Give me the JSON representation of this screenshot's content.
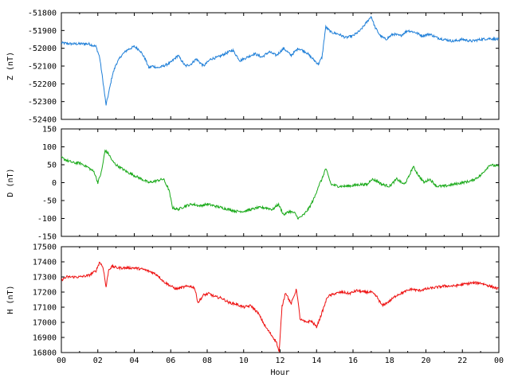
{
  "chart_data": [
    {
      "type": "line",
      "ylabel": "Z (nT)",
      "ylim": [
        -52400,
        -51800
      ],
      "yticks": [
        -52400,
        -52300,
        -52200,
        -52100,
        -52000,
        -51900,
        -51800
      ],
      "xlim": [
        0,
        24
      ],
      "color": "#1f7fd8",
      "series": [
        {
          "x": [
            0,
            0.5,
            1,
            1.5,
            1.9,
            2.1,
            2.3,
            2.45,
            2.6,
            2.8,
            3.0,
            3.3,
            3.6,
            4.0,
            4.3,
            4.6,
            4.8,
            5.0,
            5.3,
            5.6,
            6.0,
            6.4,
            6.8,
            7.1,
            7.4,
            7.8,
            8.2,
            8.6,
            9.0,
            9.4,
            9.8,
            10.2,
            10.6,
            11.0,
            11.4,
            11.8,
            12.2,
            12.6,
            13.0,
            13.4,
            13.8,
            14.1,
            14.3,
            14.5,
            14.8,
            15.2,
            15.6,
            16.0,
            16.4,
            16.7,
            17.0,
            17.2,
            17.5,
            17.8,
            18.2,
            18.6,
            19.0,
            19.4,
            19.8,
            20.2,
            20.6,
            21.0,
            21.5,
            22.0,
            22.5,
            23.0,
            23.5,
            24.0
          ],
          "values": [
            -51970,
            -51975,
            -51975,
            -51975,
            -51990,
            -52050,
            -52200,
            -52320,
            -52250,
            -52150,
            -52090,
            -52040,
            -52010,
            -51990,
            -52010,
            -52060,
            -52110,
            -52100,
            -52110,
            -52100,
            -52080,
            -52040,
            -52100,
            -52090,
            -52060,
            -52100,
            -52060,
            -52050,
            -52030,
            -52010,
            -52070,
            -52050,
            -52030,
            -52050,
            -52020,
            -52040,
            -52000,
            -52040,
            -52000,
            -52020,
            -52060,
            -52090,
            -52050,
            -51880,
            -51910,
            -51920,
            -51940,
            -51930,
            -51900,
            -51860,
            -51820,
            -51880,
            -51930,
            -51950,
            -51920,
            -51930,
            -51900,
            -51910,
            -51930,
            -51920,
            -51940,
            -51950,
            -51960,
            -51950,
            -51960,
            -51950,
            -51945,
            -51950
          ]
        }
      ]
    },
    {
      "type": "line",
      "ylabel": "D (nT)",
      "ylim": [
        -150,
        150
      ],
      "yticks": [
        -150,
        -100,
        -50,
        0,
        50,
        100,
        150
      ],
      "xlim": [
        0,
        24
      ],
      "color": "#1aaa1a",
      "series": [
        {
          "x": [
            0,
            0.3,
            0.7,
            1.0,
            1.4,
            1.8,
            2.0,
            2.2,
            2.4,
            2.6,
            2.8,
            3.0,
            3.3,
            3.6,
            4.0,
            4.4,
            4.8,
            5.2,
            5.6,
            5.9,
            6.1,
            6.4,
            6.8,
            7.2,
            7.6,
            8.0,
            8.4,
            8.8,
            9.2,
            9.6,
            10.0,
            10.4,
            10.8,
            11.2,
            11.6,
            11.9,
            12.2,
            12.5,
            12.8,
            13.0,
            13.3,
            13.6,
            13.9,
            14.1,
            14.3,
            14.5,
            14.8,
            15.2,
            15.6,
            16.0,
            16.4,
            16.8,
            17.0,
            17.3,
            17.6,
            18.0,
            18.4,
            18.8,
            19.0,
            19.3,
            19.6,
            19.9,
            20.2,
            20.6,
            21.0,
            21.5,
            22.0,
            22.5,
            23.0,
            23.5,
            24.0
          ],
          "values": [
            70,
            62,
            55,
            55,
            45,
            30,
            0,
            30,
            90,
            80,
            60,
            50,
            40,
            30,
            20,
            10,
            0,
            5,
            10,
            -20,
            -70,
            -75,
            -65,
            -60,
            -65,
            -60,
            -65,
            -70,
            -75,
            -80,
            -80,
            -75,
            -70,
            -70,
            -75,
            -60,
            -90,
            -80,
            -85,
            -100,
            -90,
            -70,
            -40,
            -10,
            10,
            40,
            -5,
            -10,
            -10,
            -8,
            -5,
            -5,
            10,
            5,
            -5,
            -10,
            10,
            -5,
            10,
            45,
            20,
            0,
            10,
            -10,
            -10,
            -5,
            0,
            5,
            20,
            50,
            45
          ]
        }
      ]
    },
    {
      "type": "line",
      "ylabel": "H (nT)",
      "ylim": [
        16800,
        17500
      ],
      "yticks": [
        16800,
        16900,
        17000,
        17100,
        17200,
        17300,
        17400,
        17500
      ],
      "xlabel": "Hour",
      "xlim": [
        0,
        24
      ],
      "xticks": [
        "00",
        "02",
        "04",
        "06",
        "08",
        "10",
        "12",
        "14",
        "16",
        "18",
        "20",
        "22",
        "00"
      ],
      "color": "#ee1111",
      "series": [
        {
          "x": [
            0,
            0.3,
            0.7,
            1.0,
            1.5,
            1.9,
            2.1,
            2.3,
            2.45,
            2.6,
            2.8,
            3.1,
            3.5,
            4.0,
            4.5,
            5.0,
            5.3,
            5.6,
            6.0,
            6.3,
            6.6,
            7.0,
            7.3,
            7.5,
            7.8,
            8.1,
            8.4,
            8.8,
            9.2,
            9.6,
            10.0,
            10.4,
            10.8,
            11.2,
            11.5,
            11.8,
            11.95,
            12.1,
            12.3,
            12.6,
            12.9,
            13.1,
            13.4,
            13.7,
            14.0,
            14.2,
            14.4,
            14.6,
            15.0,
            15.4,
            15.8,
            16.2,
            16.6,
            17.0,
            17.3,
            17.6,
            18.0,
            18.4,
            18.8,
            19.2,
            19.6,
            20.0,
            20.5,
            21.0,
            21.5,
            22.0,
            22.5,
            23.0,
            23.5,
            24.0
          ],
          "values": [
            17280,
            17300,
            17300,
            17300,
            17310,
            17340,
            17400,
            17360,
            17230,
            17350,
            17370,
            17360,
            17360,
            17360,
            17350,
            17330,
            17310,
            17270,
            17240,
            17220,
            17230,
            17240,
            17230,
            17130,
            17180,
            17190,
            17170,
            17160,
            17130,
            17120,
            17100,
            17110,
            17060,
            16970,
            16920,
            16870,
            16800,
            17100,
            17200,
            17120,
            17220,
            17020,
            17000,
            17010,
            16970,
            17030,
            17100,
            17170,
            17190,
            17200,
            17190,
            17210,
            17200,
            17200,
            17170,
            17110,
            17140,
            17180,
            17200,
            17220,
            17210,
            17220,
            17230,
            17240,
            17240,
            17250,
            17260,
            17260,
            17240,
            17220
          ]
        }
      ]
    }
  ]
}
